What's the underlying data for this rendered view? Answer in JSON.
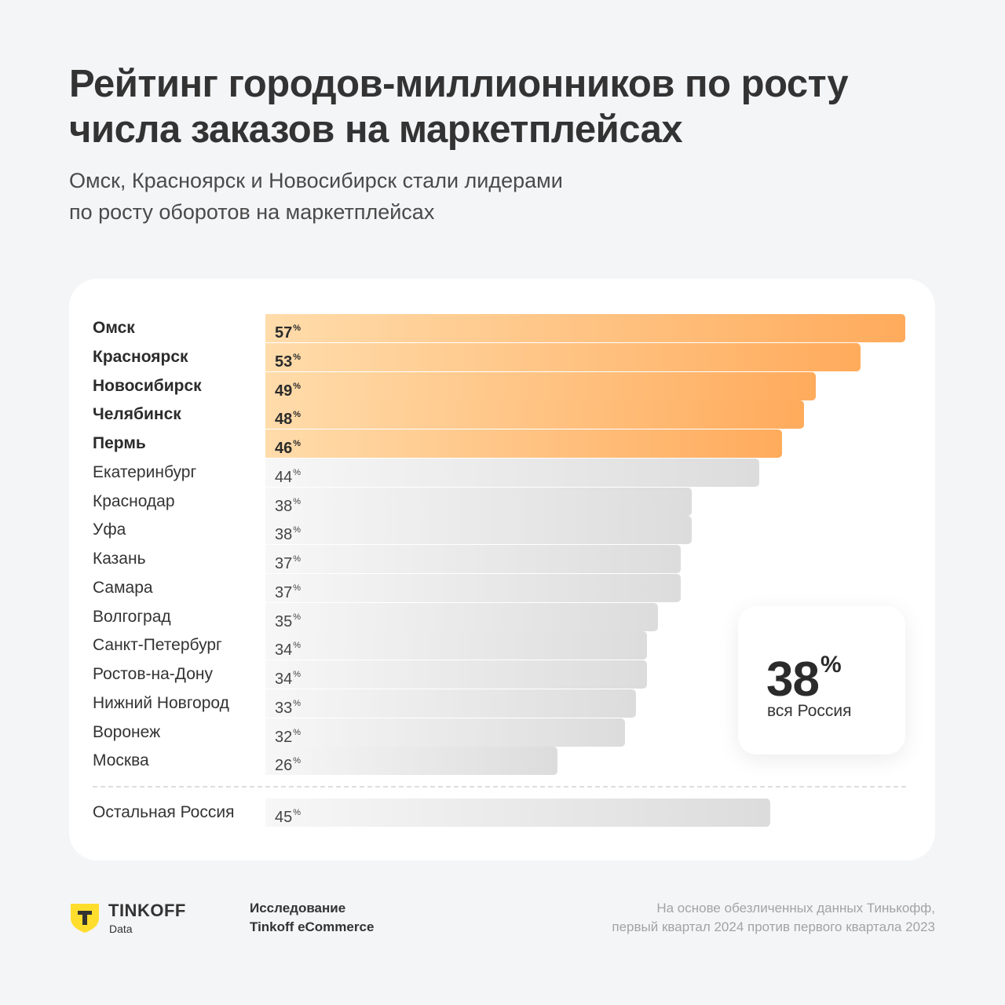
{
  "title_line1": "Рейтинг городов-миллионников по росту",
  "title_line2": "числа заказов на маркетплейсах",
  "subtitle_line1": "Омск, Красноярск и Новосибирск стали лидерами",
  "subtitle_line2": "по росту оборотов на маркетплейсах",
  "colors": {
    "highlight_start": "#ffdcab",
    "highlight_end": "#ffab5c",
    "neutral_start": "#f7f7f7",
    "neutral_end": "#dcdcdc",
    "brand_yellow": "#ffdd2d"
  },
  "chart_data": {
    "type": "bar",
    "orientation": "horizontal",
    "unit": "%",
    "categories": [
      "Омск",
      "Красноярск",
      "Новосибирск",
      "Челябинск",
      "Пермь",
      "Екатеринбург",
      "Краснодар",
      "Уфа",
      "Казань",
      "Самара",
      "Волгоград",
      "Санкт-Петербург",
      "Ростов-на-Дону",
      "Нижний Новгород",
      "Воронеж",
      "Москва"
    ],
    "values": [
      57,
      53,
      49,
      48,
      46,
      44,
      38,
      38,
      37,
      37,
      35,
      34,
      34,
      33,
      32,
      26
    ],
    "highlighted": [
      "Омск",
      "Красноярск",
      "Новосибирск",
      "Челябинск",
      "Пермь"
    ],
    "extra": {
      "category": "Остальная Россия",
      "value": 45
    },
    "total": {
      "value": 38,
      "label": "вся Россия"
    },
    "xlim": [
      0,
      57
    ],
    "grid": false
  },
  "footer": {
    "logo_name": "TINKOFF",
    "logo_sub": "Data",
    "logo_icon": "tinkoff-shield-icon",
    "study_line1": "Исследование",
    "study_line2": "Tinkoff eCommerce",
    "source_line1": "На основе обезличенных данных Тинькофф,",
    "source_line2": "первый квартал 2024 против первого квартала 2023"
  }
}
